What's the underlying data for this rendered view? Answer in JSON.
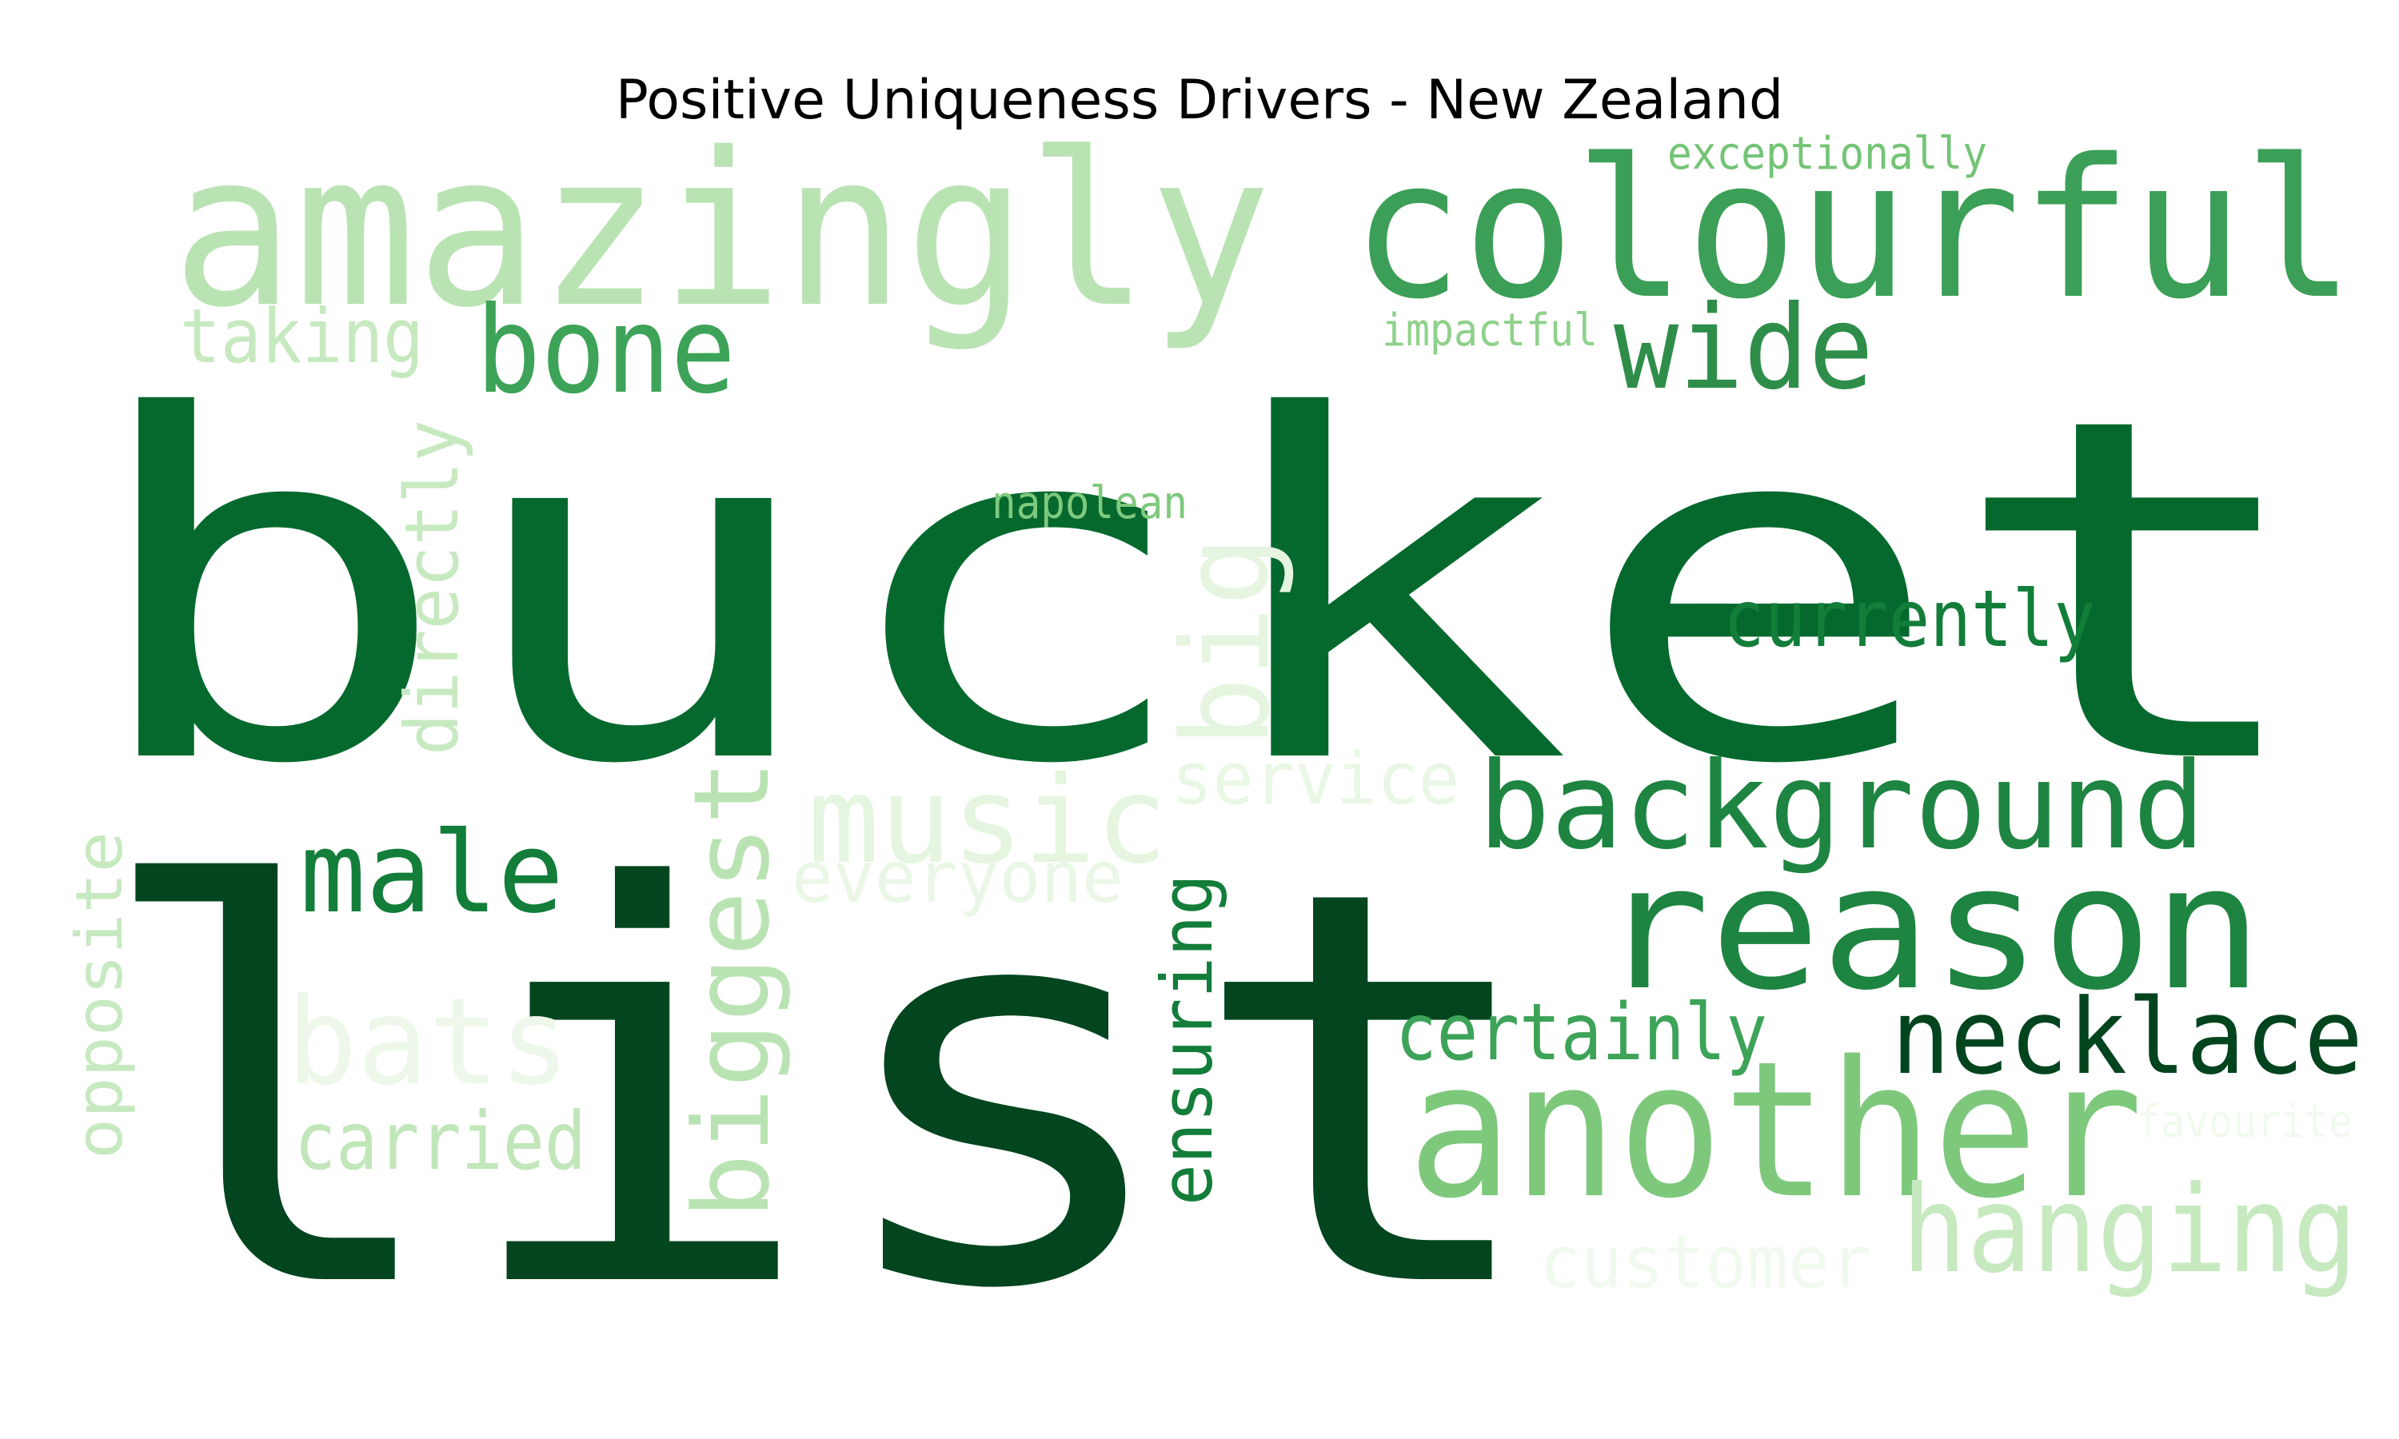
{
  "title": "Positive Uniqueness Drivers - New Zealand",
  "words": [
    {
      "text": "bucket",
      "color": "#05692e"
    },
    {
      "text": "list",
      "color": "#02451e"
    },
    {
      "text": "amazingly",
      "color": "#bae3b3"
    },
    {
      "text": "colourful",
      "color": "#3c9f57"
    },
    {
      "text": "exceptionally",
      "color": "#74c476"
    },
    {
      "text": "impactful",
      "color": "#8fd18b"
    },
    {
      "text": "taking",
      "color": "#c7e9c0"
    },
    {
      "text": "bone",
      "color": "#3da358"
    },
    {
      "text": "wide",
      "color": "#2e8e49"
    },
    {
      "text": "napolean",
      "color": "#7fc97d"
    },
    {
      "text": "directly",
      "color": "#c7e9c0"
    },
    {
      "text": "big",
      "color": "#e5f5e0"
    },
    {
      "text": "currently",
      "color": "#137d3a"
    },
    {
      "text": "service",
      "color": "#e9f7e5"
    },
    {
      "text": "music",
      "color": "#e5f5e0"
    },
    {
      "text": "background",
      "color": "#1e8441"
    },
    {
      "text": "male",
      "color": "#137d3a"
    },
    {
      "text": "everyone",
      "color": "#eaf7e6"
    },
    {
      "text": "opposite",
      "color": "#c7e9c0"
    },
    {
      "text": "biggest",
      "color": "#bae3b3"
    },
    {
      "text": "reason",
      "color": "#1e8441"
    },
    {
      "text": "ensuring",
      "color": "#137d3a"
    },
    {
      "text": "bats",
      "color": "#eef8ea"
    },
    {
      "text": "certainly",
      "color": "#3da358"
    },
    {
      "text": "necklace",
      "color": "#02441d"
    },
    {
      "text": "another",
      "color": "#7ec87c"
    },
    {
      "text": "carried",
      "color": "#c1e6ba"
    },
    {
      "text": "favourite",
      "color": "#f1faee"
    },
    {
      "text": "customer",
      "color": "#f1faee"
    },
    {
      "text": "hanging",
      "color": "#c7e9c0"
    }
  ]
}
